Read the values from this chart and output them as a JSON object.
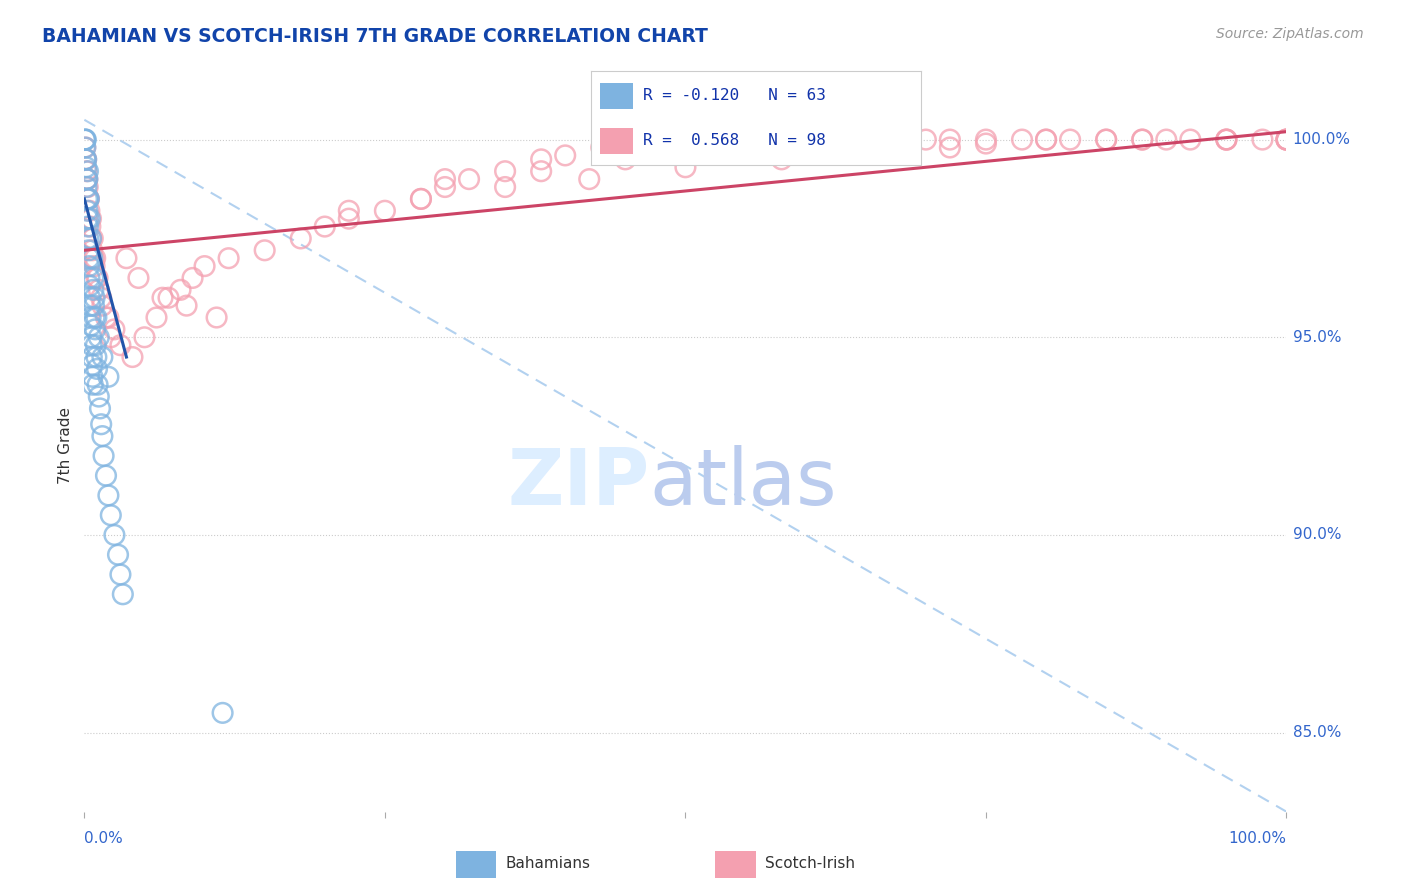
{
  "title": "BAHAMIAN VS SCOTCH-IRISH 7TH GRADE CORRELATION CHART",
  "source_text": "Source: ZipAtlas.com",
  "ylabel": "7th Grade",
  "blue_color": "#7EB3E0",
  "pink_color": "#F4A0B0",
  "blue_line_color": "#2255AA",
  "pink_line_color": "#CC4466",
  "dash_line_color": "#AACCEE",
  "background_color": "#FFFFFF",
  "xmin": 0.0,
  "xmax": 100.0,
  "ymin": 83.0,
  "ymax": 101.5,
  "yticks": [
    85.0,
    90.0,
    95.0,
    100.0
  ],
  "blue_R": -0.12,
  "blue_N": 63,
  "pink_R": 0.568,
  "pink_N": 98,
  "blue_line_x0": 0.0,
  "blue_line_y0": 98.5,
  "blue_line_x1": 3.5,
  "blue_line_y1": 94.5,
  "pink_line_x0": 0.0,
  "pink_line_y0": 97.2,
  "pink_line_x1": 100.0,
  "pink_line_y1": 100.2,
  "dash_line_x0": 0.0,
  "dash_line_y0": 100.5,
  "dash_line_x1": 100.0,
  "dash_line_y1": 83.0,
  "blue_scatter_x": [
    0.05,
    0.08,
    0.12,
    0.08,
    0.1,
    0.15,
    0.2,
    0.18,
    0.22,
    0.25,
    0.28,
    0.3,
    0.3,
    0.32,
    0.35,
    0.38,
    0.4,
    0.35,
    0.42,
    0.45,
    0.48,
    0.5,
    0.52,
    0.55,
    0.58,
    0.6,
    0.62,
    0.65,
    0.68,
    0.7,
    0.75,
    0.8,
    0.85,
    0.9,
    0.95,
    1.0,
    1.05,
    1.1,
    1.2,
    1.3,
    1.4,
    1.5,
    1.6,
    1.8,
    2.0,
    2.2,
    2.5,
    2.8,
    3.0,
    3.2,
    0.15,
    0.25,
    0.35,
    0.45,
    0.55,
    0.65,
    0.75,
    0.85,
    1.0,
    1.2,
    1.5,
    2.0,
    11.5
  ],
  "blue_scatter_y": [
    100.0,
    100.0,
    100.0,
    99.8,
    99.5,
    99.3,
    99.0,
    98.8,
    98.5,
    98.2,
    98.0,
    97.8,
    99.2,
    97.5,
    97.2,
    97.0,
    96.8,
    98.5,
    96.5,
    96.3,
    96.0,
    95.8,
    95.5,
    95.3,
    95.0,
    94.8,
    94.5,
    94.3,
    94.0,
    93.8,
    96.2,
    95.8,
    95.5,
    95.2,
    94.8,
    94.5,
    94.2,
    93.8,
    93.5,
    93.2,
    92.8,
    92.5,
    92.0,
    91.5,
    91.0,
    90.5,
    90.0,
    89.5,
    89.0,
    88.5,
    99.5,
    99.0,
    98.5,
    98.0,
    97.5,
    97.0,
    96.5,
    96.0,
    95.5,
    95.0,
    94.5,
    94.0,
    85.5
  ],
  "pink_scatter_x": [
    0.08,
    0.12,
    0.18,
    0.22,
    0.28,
    0.35,
    0.42,
    0.5,
    0.58,
    0.65,
    0.75,
    0.85,
    1.0,
    1.2,
    1.5,
    2.0,
    2.5,
    3.0,
    4.0,
    5.0,
    6.0,
    7.0,
    8.0,
    9.0,
    10.0,
    12.0,
    15.0,
    18.0,
    20.0,
    22.0,
    25.0,
    28.0,
    30.0,
    32.0,
    35.0,
    38.0,
    40.0,
    43.0,
    45.0,
    48.0,
    50.0,
    52.0,
    55.0,
    58.0,
    60.0,
    62.0,
    65.0,
    68.0,
    70.0,
    72.0,
    75.0,
    78.0,
    80.0,
    82.0,
    85.0,
    88.0,
    90.0,
    92.0,
    95.0,
    98.0,
    100.0,
    0.15,
    0.25,
    0.38,
    0.55,
    0.7,
    0.9,
    1.1,
    1.4,
    1.8,
    2.2,
    3.5,
    4.5,
    6.5,
    8.5,
    11.0,
    30.0,
    38.0,
    45.0,
    55.0,
    65.0,
    75.0,
    85.0,
    95.0,
    100.0,
    22.0,
    28.0,
    35.0,
    42.0,
    50.0,
    58.0,
    65.0,
    72.0,
    80.0,
    88.0,
    95.0,
    100.0,
    100.0
  ],
  "pink_scatter_y": [
    99.8,
    99.5,
    99.2,
    99.0,
    98.8,
    98.5,
    98.2,
    97.8,
    97.5,
    97.2,
    97.0,
    96.8,
    96.5,
    96.2,
    95.8,
    95.5,
    95.2,
    94.8,
    94.5,
    95.0,
    95.5,
    96.0,
    96.2,
    96.5,
    96.8,
    97.0,
    97.2,
    97.5,
    97.8,
    98.0,
    98.2,
    98.5,
    98.8,
    99.0,
    99.2,
    99.5,
    99.6,
    99.8,
    100.0,
    100.0,
    100.0,
    100.0,
    100.0,
    100.0,
    100.0,
    100.0,
    100.0,
    100.0,
    100.0,
    100.0,
    100.0,
    100.0,
    100.0,
    100.0,
    100.0,
    100.0,
    100.0,
    100.0,
    100.0,
    100.0,
    100.0,
    99.5,
    99.0,
    98.5,
    98.0,
    97.5,
    97.0,
    96.5,
    96.0,
    95.5,
    95.0,
    97.0,
    96.5,
    96.0,
    95.8,
    95.5,
    99.0,
    99.2,
    99.5,
    99.7,
    99.8,
    99.9,
    100.0,
    100.0,
    100.0,
    98.2,
    98.5,
    98.8,
    99.0,
    99.3,
    99.5,
    99.7,
    99.8,
    100.0,
    100.0,
    100.0,
    100.0,
    100.0
  ]
}
